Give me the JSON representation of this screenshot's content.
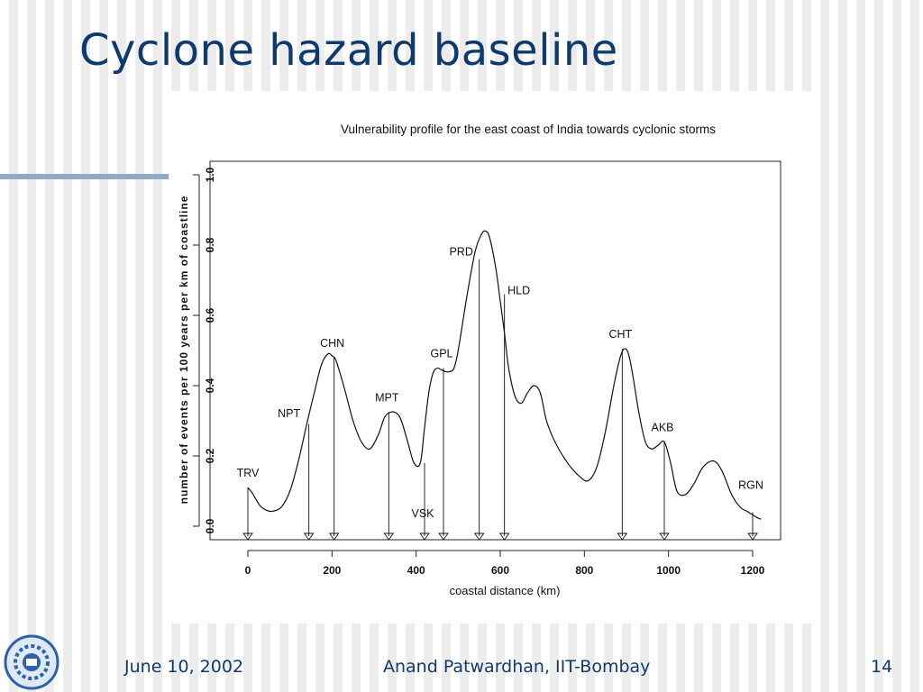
{
  "slide": {
    "title": "Cyclone hazard baseline",
    "footer_date": "June 10, 2002",
    "footer_author": "Anand Patwardhan, IIT-Bombay",
    "page_number": "14"
  },
  "colors": {
    "title": "#0f3a6e",
    "rule": "#8fa9c8",
    "logo": "#2a63a8"
  },
  "chart_data": {
    "type": "line",
    "title": "Vulnerability profile for the east coast of India towards cyclonic storms",
    "xlabel": "coastal distance (km)",
    "ylabel": "number of events per 100 years per km of coastline",
    "xlim": [
      0,
      1200
    ],
    "ylim": [
      0,
      1.0
    ],
    "x_ticks": [
      0,
      200,
      400,
      600,
      800,
      1000,
      1200
    ],
    "y_ticks": [
      0.0,
      0.2,
      0.4,
      0.6,
      0.8,
      1.0
    ],
    "grid": false,
    "series": [
      {
        "x": [
          0,
          10,
          20,
          30,
          45,
          60,
          80,
          100,
          120,
          140,
          160,
          175,
          190,
          200,
          210,
          230,
          250,
          270,
          290,
          310,
          325,
          340,
          355,
          365,
          380,
          395,
          410,
          420,
          430,
          440,
          450,
          460,
          470,
          480,
          490,
          500,
          520,
          540,
          555,
          565,
          575,
          590,
          600,
          610,
          620,
          635,
          650,
          665,
          680,
          695,
          710,
          730,
          760,
          790,
          810,
          830,
          850,
          870,
          885,
          895,
          905,
          915,
          930,
          945,
          960,
          975,
          990,
          1005,
          1020,
          1040,
          1060,
          1080,
          1100,
          1115,
          1130,
          1150,
          1170,
          1190,
          1210,
          1220
        ],
        "y": [
          0.11,
          0.095,
          0.075,
          0.057,
          0.045,
          0.043,
          0.055,
          0.1,
          0.185,
          0.29,
          0.39,
          0.46,
          0.49,
          0.485,
          0.47,
          0.39,
          0.3,
          0.24,
          0.22,
          0.26,
          0.31,
          0.325,
          0.32,
          0.3,
          0.24,
          0.18,
          0.18,
          0.28,
          0.38,
          0.435,
          0.45,
          0.445,
          0.44,
          0.44,
          0.45,
          0.5,
          0.65,
          0.78,
          0.83,
          0.84,
          0.82,
          0.73,
          0.64,
          0.55,
          0.45,
          0.37,
          0.35,
          0.38,
          0.4,
          0.38,
          0.3,
          0.24,
          0.18,
          0.14,
          0.13,
          0.17,
          0.27,
          0.4,
          0.48,
          0.505,
          0.49,
          0.43,
          0.32,
          0.24,
          0.22,
          0.23,
          0.24,
          0.18,
          0.1,
          0.09,
          0.12,
          0.165,
          0.185,
          0.18,
          0.15,
          0.09,
          0.055,
          0.04,
          0.025,
          0.02
        ]
      }
    ],
    "annotations": [
      {
        "label": "TRV",
        "x": 0,
        "y": 0.11
      },
      {
        "label": "NPT",
        "x": 145,
        "y": 0.29
      },
      {
        "label": "CHN",
        "x": 205,
        "y": 0.48
      },
      {
        "label": "MPT",
        "x": 335,
        "y": 0.325
      },
      {
        "label": "VSK",
        "x": 420,
        "y": 0.18
      },
      {
        "label": "GPL",
        "x": 465,
        "y": 0.45
      },
      {
        "label": "PRD",
        "x": 550,
        "y": 0.76
      },
      {
        "label": "HLD",
        "x": 610,
        "y": 0.66
      },
      {
        "label": "CHT",
        "x": 890,
        "y": 0.505
      },
      {
        "label": "AKB",
        "x": 990,
        "y": 0.24
      },
      {
        "label": "RGN",
        "x": 1200,
        "y": 0.04
      }
    ]
  }
}
